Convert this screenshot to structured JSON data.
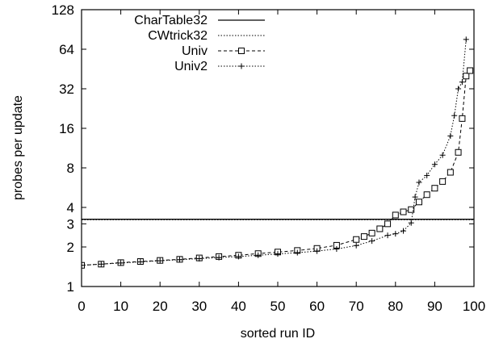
{
  "chart_data": {
    "type": "line",
    "xlabel": "sorted run ID",
    "ylabel": "probes per update",
    "xlim": [
      0,
      100
    ],
    "ylim": [
      1,
      128
    ],
    "yscale": "log2",
    "grid": false,
    "legend_placement": "top-left",
    "x_ticks": [
      "0",
      "10",
      "20",
      "30",
      "40",
      "50",
      "60",
      "70",
      "80",
      "90",
      "100"
    ],
    "y_ticks": [
      "1",
      "2",
      "3",
      "4",
      "8",
      "16",
      "32",
      "64",
      "128"
    ],
    "series": [
      {
        "name": "CharTable32",
        "style": "solid",
        "marker": "none",
        "points": [
          [
            0,
            3.25
          ],
          [
            100,
            3.25
          ]
        ]
      },
      {
        "name": "CWtrick32",
        "style": "dotted",
        "marker": "none",
        "points": [
          [
            0,
            3.22
          ],
          [
            100,
            3.22
          ]
        ]
      },
      {
        "name": "Univ",
        "style": "dashed",
        "marker": "square",
        "points": [
          [
            0,
            1.45
          ],
          [
            5,
            1.48
          ],
          [
            10,
            1.52
          ],
          [
            15,
            1.55
          ],
          [
            20,
            1.58
          ],
          [
            25,
            1.61
          ],
          [
            30,
            1.65
          ],
          [
            35,
            1.69
          ],
          [
            40,
            1.73
          ],
          [
            45,
            1.78
          ],
          [
            50,
            1.83
          ],
          [
            55,
            1.88
          ],
          [
            60,
            1.95
          ],
          [
            65,
            2.06
          ],
          [
            70,
            2.28
          ],
          [
            72,
            2.4
          ],
          [
            74,
            2.55
          ],
          [
            76,
            2.75
          ],
          [
            78,
            3.0
          ],
          [
            80,
            3.5
          ],
          [
            82,
            3.7
          ],
          [
            84,
            3.85
          ],
          [
            86,
            4.4
          ],
          [
            88,
            5.0
          ],
          [
            90,
            5.6
          ],
          [
            92,
            6.3
          ],
          [
            94,
            7.4
          ],
          [
            96,
            10.5
          ],
          [
            97,
            19.0
          ],
          [
            98,
            40.0
          ],
          [
            99,
            44.0
          ]
        ]
      },
      {
        "name": "Univ2",
        "style": "dotted",
        "marker": "plus",
        "points": [
          [
            0,
            1.45
          ],
          [
            5,
            1.48
          ],
          [
            10,
            1.51
          ],
          [
            15,
            1.54
          ],
          [
            20,
            1.57
          ],
          [
            25,
            1.6
          ],
          [
            30,
            1.63
          ],
          [
            35,
            1.66
          ],
          [
            40,
            1.69
          ],
          [
            45,
            1.73
          ],
          [
            50,
            1.77
          ],
          [
            55,
            1.81
          ],
          [
            60,
            1.86
          ],
          [
            65,
            1.93
          ],
          [
            70,
            2.05
          ],
          [
            74,
            2.22
          ],
          [
            78,
            2.45
          ],
          [
            80,
            2.52
          ],
          [
            82,
            2.65
          ],
          [
            84,
            3.05
          ],
          [
            85,
            4.8
          ],
          [
            86,
            6.2
          ],
          [
            88,
            7.0
          ],
          [
            90,
            8.5
          ],
          [
            92,
            10.0
          ],
          [
            94,
            14.0
          ],
          [
            95,
            20.0
          ],
          [
            96,
            32.0
          ],
          [
            97,
            36.0
          ],
          [
            98,
            76.0
          ]
        ]
      }
    ]
  }
}
